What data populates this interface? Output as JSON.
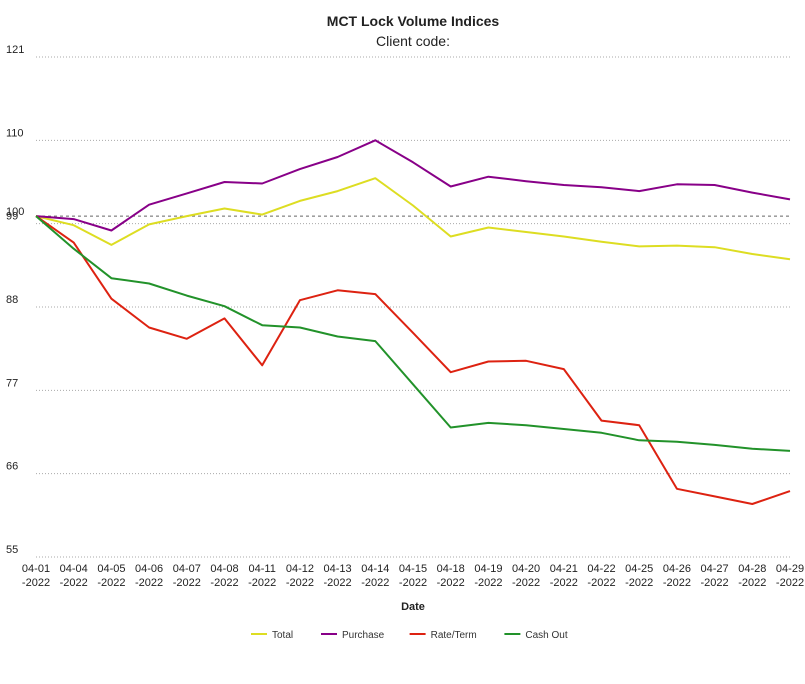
{
  "chart_data": {
    "type": "line",
    "title": "MCT Lock Volume Indices",
    "subtitle": "Client code:",
    "xlabel": "Date",
    "ylabel": "",
    "ylim": [
      55,
      121
    ],
    "yticks": [
      55,
      66,
      77,
      88,
      99,
      110,
      121
    ],
    "reference_line": 100,
    "reference_label": "100",
    "grid": true,
    "legend_position": "bottom",
    "categories": [
      "04-01-2022",
      "04-04-2022",
      "04-05-2022",
      "04-06-2022",
      "04-07-2022",
      "04-08-2022",
      "04-11-2022",
      "04-12-2022",
      "04-13-2022",
      "04-14-2022",
      "04-15-2022",
      "04-18-2022",
      "04-19-2022",
      "04-20-2022",
      "04-21-2022",
      "04-22-2022",
      "04-25-2022",
      "04-26-2022",
      "04-27-2022",
      "04-28-2022",
      "04-29-2022"
    ],
    "series": [
      {
        "name": "Total",
        "color": "#dddd22",
        "values": [
          100,
          98.8,
          96.2,
          98.9,
          100,
          101,
          100.2,
          102,
          103.3,
          105,
          101.4,
          97.3,
          98.5,
          97.9,
          97.3,
          96.6,
          96,
          96.1,
          95.9,
          95,
          94.3
        ]
      },
      {
        "name": "Purchase",
        "color": "#880088",
        "values": [
          100,
          99.6,
          98.1,
          101.5,
          103,
          104.5,
          104.3,
          106.2,
          107.8,
          110,
          107.1,
          103.9,
          105.2,
          104.6,
          104.1,
          103.8,
          103.3,
          104.2,
          104.1,
          103.1,
          102.2
        ]
      },
      {
        "name": "Rate/Term",
        "color": "#dd2211",
        "values": [
          100,
          96.5,
          89.1,
          85.3,
          83.8,
          86.5,
          80.3,
          88.9,
          90.2,
          89.7,
          84.6,
          79.4,
          80.8,
          80.9,
          79.8,
          73,
          72.4,
          64,
          63,
          62,
          63.7
        ]
      },
      {
        "name": "Cash Out",
        "color": "#22922a",
        "values": [
          100,
          95.7,
          91.8,
          91.1,
          89.5,
          88.1,
          85.6,
          85.3,
          84.1,
          83.5,
          77.8,
          72.1,
          72.7,
          72.4,
          71.9,
          71.4,
          70.4,
          70.2,
          69.8,
          69.3,
          69
        ]
      }
    ]
  }
}
